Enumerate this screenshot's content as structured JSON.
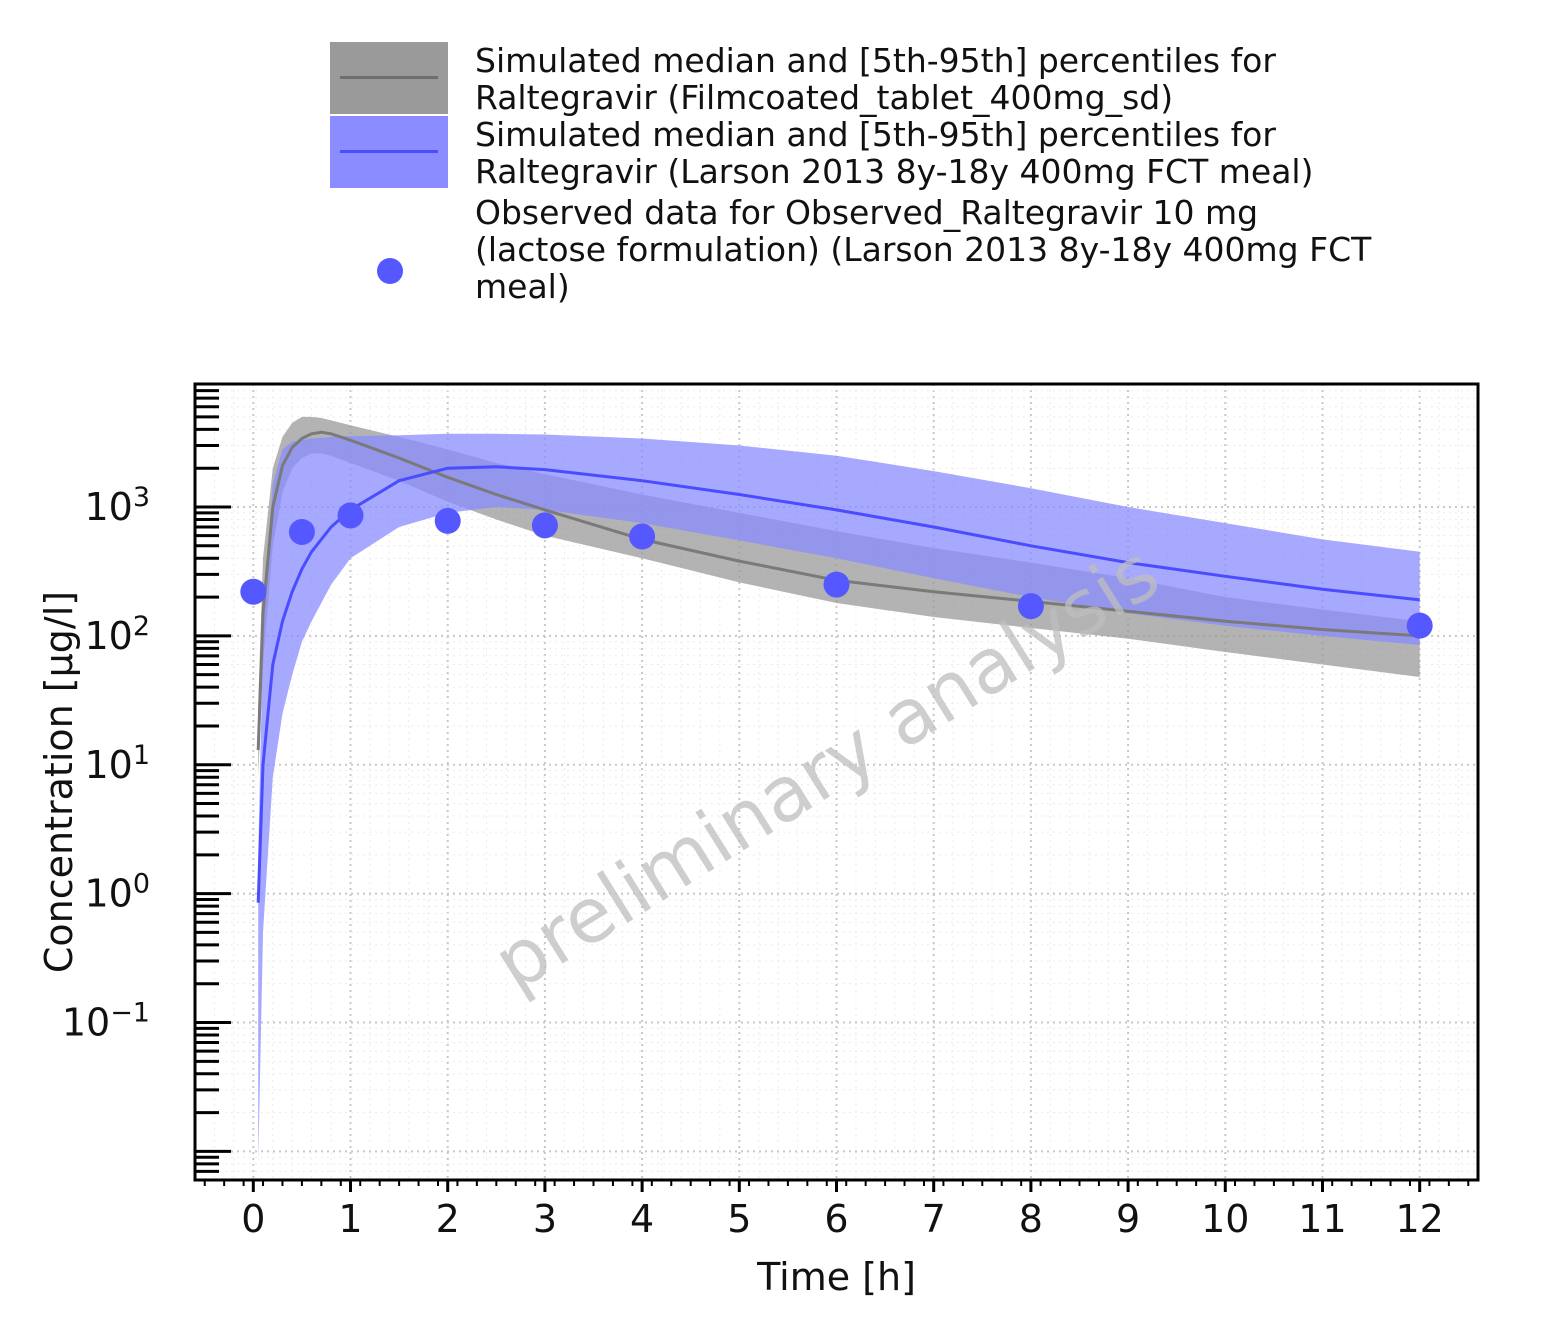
{
  "legend": [
    {
      "kind": "band",
      "text": "Simulated median and [5th-95th] percentiles for Raltegravir (Filmcoated_tablet_400mg_sd)",
      "fill": "#9a9a9a",
      "line": "#6e6e6e"
    },
    {
      "kind": "band",
      "text": "Simulated median and [5th-95th] percentiles for Raltegravir (Larson 2013 8y-18y 400mg FCT meal)",
      "fill": "#8a8cff",
      "line": "#4a4cff"
    },
    {
      "kind": "points",
      "text": "Observed data for Observed_Raltegravir 10 mg (lactose formulation) (Larson 2013 8y-18y 400mg FCT meal)",
      "color": "#5558ff"
    }
  ],
  "chart_data": {
    "type": "line",
    "xlabel": "Time [h]",
    "ylabel": "Concentration [µg/l]",
    "watermark": "preliminary analysis",
    "x_scale": "linear",
    "y_scale": "log",
    "xlim": [
      -0.6,
      12.6
    ],
    "ylim": [
      0.006,
      9000
    ],
    "xticks": [
      0,
      1,
      2,
      3,
      4,
      5,
      6,
      7,
      8,
      9,
      10,
      11,
      12
    ],
    "yticks": [
      {
        "value": 0.1,
        "base": "10",
        "exp": "−1"
      },
      {
        "value": 1,
        "base": "10",
        "exp": "0"
      },
      {
        "value": 10,
        "base": "10",
        "exp": "1"
      },
      {
        "value": 100,
        "base": "10",
        "exp": "2"
      },
      {
        "value": 1000,
        "base": "10",
        "exp": "3"
      }
    ],
    "grid": true,
    "series": [
      {
        "name": "Simulated median and [5th-95th] percentiles for Raltegravir (Filmcoated_tablet_400mg_sd)",
        "color": "#7a7a7a",
        "band_color": "#9a9a9a",
        "x": [
          0.05,
          0.1,
          0.2,
          0.3,
          0.4,
          0.5,
          0.6,
          0.7,
          0.8,
          1.0,
          1.5,
          2.0,
          2.5,
          3.0,
          4.0,
          5.0,
          6.0,
          7.0,
          8.0,
          9.0,
          10.0,
          11.0,
          12.0
        ],
        "median": [
          13,
          150,
          1000,
          2100,
          2900,
          3400,
          3700,
          3800,
          3700,
          3300,
          2400,
          1700,
          1250,
          950,
          560,
          380,
          270,
          220,
          185,
          155,
          130,
          112,
          100
        ],
        "p5": [
          8,
          60,
          500,
          1300,
          2000,
          2400,
          2600,
          2600,
          2500,
          2200,
          1600,
          1100,
          800,
          600,
          400,
          260,
          180,
          140,
          115,
          95,
          75,
          60,
          48
        ],
        "p95": [
          30,
          400,
          2000,
          3500,
          4500,
          5000,
          5000,
          4900,
          4700,
          4300,
          3500,
          2800,
          2200,
          1800,
          1250,
          900,
          650,
          480,
          370,
          280,
          200,
          160,
          130
        ]
      },
      {
        "name": "Simulated median and [5th-95th] percentiles for Raltegravir (Larson 2013 8y-18y 400mg FCT meal)",
        "color": "#4a4cff",
        "band_color": "#8a8cff",
        "x": [
          0.05,
          0.1,
          0.2,
          0.3,
          0.4,
          0.5,
          0.6,
          0.8,
          1.0,
          1.5,
          2.0,
          2.5,
          3.0,
          4.0,
          5.0,
          6.0,
          7.0,
          8.0,
          9.0,
          10.0,
          11.0,
          12.0
        ],
        "median": [
          0.85,
          10,
          60,
          130,
          220,
          330,
          450,
          700,
          950,
          1600,
          2000,
          2050,
          1950,
          1600,
          1250,
          950,
          700,
          500,
          370,
          290,
          230,
          190
        ],
        "p5": [
          0.008,
          0.5,
          8,
          25,
          50,
          90,
          130,
          250,
          400,
          700,
          900,
          1000,
          950,
          750,
          550,
          400,
          280,
          200,
          150,
          120,
          100,
          85
        ],
        "p95": [
          2,
          100,
          1500,
          2800,
          3200,
          3300,
          3400,
          3500,
          3550,
          3600,
          3700,
          3700,
          3650,
          3400,
          3000,
          2500,
          1900,
          1400,
          1000,
          750,
          560,
          450
        ]
      }
    ],
    "points": {
      "name": "Observed data for Observed_Raltegravir 10 mg (lactose formulation) (Larson 2013 8y-18y 400mg FCT meal)",
      "color": "#5558ff",
      "x": [
        0,
        0.5,
        1,
        2,
        3,
        4,
        6,
        8,
        12
      ],
      "y": [
        220,
        640,
        860,
        780,
        720,
        590,
        250,
        170,
        120
      ]
    }
  }
}
